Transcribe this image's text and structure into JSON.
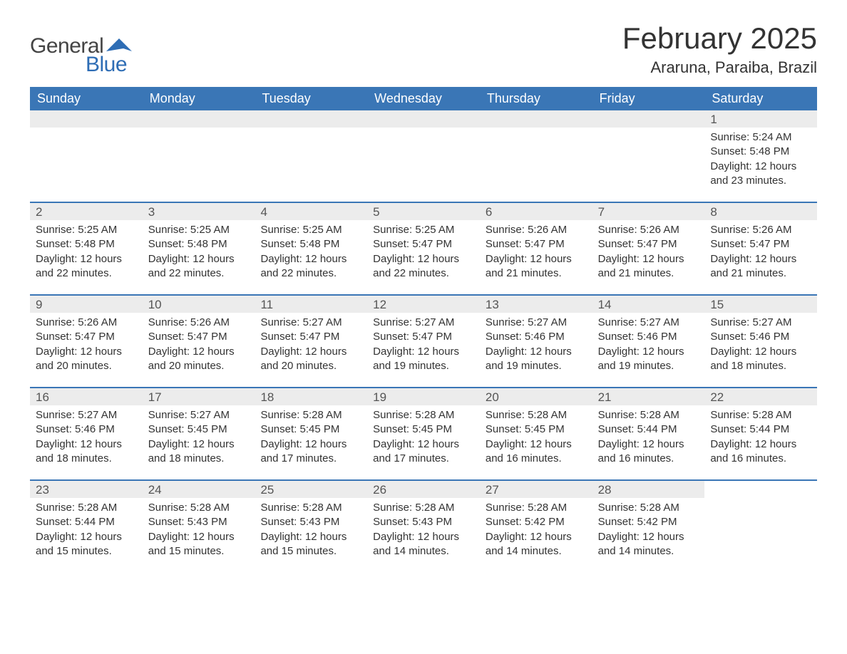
{
  "logo": {
    "text_general": "General",
    "text_blue": "Blue"
  },
  "title": "February 2025",
  "location": "Araruna, Paraiba, Brazil",
  "colors": {
    "header_bg": "#3a76b6",
    "header_text": "#ffffff",
    "daynum_bg": "#ececec",
    "border": "#3a76b6",
    "body_text": "#333333",
    "logo_blue": "#2e6db5",
    "background": "#ffffff"
  },
  "typography": {
    "title_fontsize": 42,
    "location_fontsize": 22,
    "dayheader_fontsize": 18,
    "daynum_fontsize": 17,
    "body_fontsize": 15
  },
  "day_headers": [
    "Sunday",
    "Monday",
    "Tuesday",
    "Wednesday",
    "Thursday",
    "Friday",
    "Saturday"
  ],
  "weeks": [
    [
      {
        "empty": true
      },
      {
        "empty": true
      },
      {
        "empty": true
      },
      {
        "empty": true
      },
      {
        "empty": true
      },
      {
        "empty": true
      },
      {
        "day": "1",
        "sunrise": "Sunrise: 5:24 AM",
        "sunset": "Sunset: 5:48 PM",
        "daylight1": "Daylight: 12 hours",
        "daylight2": "and 23 minutes."
      }
    ],
    [
      {
        "day": "2",
        "sunrise": "Sunrise: 5:25 AM",
        "sunset": "Sunset: 5:48 PM",
        "daylight1": "Daylight: 12 hours",
        "daylight2": "and 22 minutes."
      },
      {
        "day": "3",
        "sunrise": "Sunrise: 5:25 AM",
        "sunset": "Sunset: 5:48 PM",
        "daylight1": "Daylight: 12 hours",
        "daylight2": "and 22 minutes."
      },
      {
        "day": "4",
        "sunrise": "Sunrise: 5:25 AM",
        "sunset": "Sunset: 5:48 PM",
        "daylight1": "Daylight: 12 hours",
        "daylight2": "and 22 minutes."
      },
      {
        "day": "5",
        "sunrise": "Sunrise: 5:25 AM",
        "sunset": "Sunset: 5:47 PM",
        "daylight1": "Daylight: 12 hours",
        "daylight2": "and 22 minutes."
      },
      {
        "day": "6",
        "sunrise": "Sunrise: 5:26 AM",
        "sunset": "Sunset: 5:47 PM",
        "daylight1": "Daylight: 12 hours",
        "daylight2": "and 21 minutes."
      },
      {
        "day": "7",
        "sunrise": "Sunrise: 5:26 AM",
        "sunset": "Sunset: 5:47 PM",
        "daylight1": "Daylight: 12 hours",
        "daylight2": "and 21 minutes."
      },
      {
        "day": "8",
        "sunrise": "Sunrise: 5:26 AM",
        "sunset": "Sunset: 5:47 PM",
        "daylight1": "Daylight: 12 hours",
        "daylight2": "and 21 minutes."
      }
    ],
    [
      {
        "day": "9",
        "sunrise": "Sunrise: 5:26 AM",
        "sunset": "Sunset: 5:47 PM",
        "daylight1": "Daylight: 12 hours",
        "daylight2": "and 20 minutes."
      },
      {
        "day": "10",
        "sunrise": "Sunrise: 5:26 AM",
        "sunset": "Sunset: 5:47 PM",
        "daylight1": "Daylight: 12 hours",
        "daylight2": "and 20 minutes."
      },
      {
        "day": "11",
        "sunrise": "Sunrise: 5:27 AM",
        "sunset": "Sunset: 5:47 PM",
        "daylight1": "Daylight: 12 hours",
        "daylight2": "and 20 minutes."
      },
      {
        "day": "12",
        "sunrise": "Sunrise: 5:27 AM",
        "sunset": "Sunset: 5:47 PM",
        "daylight1": "Daylight: 12 hours",
        "daylight2": "and 19 minutes."
      },
      {
        "day": "13",
        "sunrise": "Sunrise: 5:27 AM",
        "sunset": "Sunset: 5:46 PM",
        "daylight1": "Daylight: 12 hours",
        "daylight2": "and 19 minutes."
      },
      {
        "day": "14",
        "sunrise": "Sunrise: 5:27 AM",
        "sunset": "Sunset: 5:46 PM",
        "daylight1": "Daylight: 12 hours",
        "daylight2": "and 19 minutes."
      },
      {
        "day": "15",
        "sunrise": "Sunrise: 5:27 AM",
        "sunset": "Sunset: 5:46 PM",
        "daylight1": "Daylight: 12 hours",
        "daylight2": "and 18 minutes."
      }
    ],
    [
      {
        "day": "16",
        "sunrise": "Sunrise: 5:27 AM",
        "sunset": "Sunset: 5:46 PM",
        "daylight1": "Daylight: 12 hours",
        "daylight2": "and 18 minutes."
      },
      {
        "day": "17",
        "sunrise": "Sunrise: 5:27 AM",
        "sunset": "Sunset: 5:45 PM",
        "daylight1": "Daylight: 12 hours",
        "daylight2": "and 18 minutes."
      },
      {
        "day": "18",
        "sunrise": "Sunrise: 5:28 AM",
        "sunset": "Sunset: 5:45 PM",
        "daylight1": "Daylight: 12 hours",
        "daylight2": "and 17 minutes."
      },
      {
        "day": "19",
        "sunrise": "Sunrise: 5:28 AM",
        "sunset": "Sunset: 5:45 PM",
        "daylight1": "Daylight: 12 hours",
        "daylight2": "and 17 minutes."
      },
      {
        "day": "20",
        "sunrise": "Sunrise: 5:28 AM",
        "sunset": "Sunset: 5:45 PM",
        "daylight1": "Daylight: 12 hours",
        "daylight2": "and 16 minutes."
      },
      {
        "day": "21",
        "sunrise": "Sunrise: 5:28 AM",
        "sunset": "Sunset: 5:44 PM",
        "daylight1": "Daylight: 12 hours",
        "daylight2": "and 16 minutes."
      },
      {
        "day": "22",
        "sunrise": "Sunrise: 5:28 AM",
        "sunset": "Sunset: 5:44 PM",
        "daylight1": "Daylight: 12 hours",
        "daylight2": "and 16 minutes."
      }
    ],
    [
      {
        "day": "23",
        "sunrise": "Sunrise: 5:28 AM",
        "sunset": "Sunset: 5:44 PM",
        "daylight1": "Daylight: 12 hours",
        "daylight2": "and 15 minutes."
      },
      {
        "day": "24",
        "sunrise": "Sunrise: 5:28 AM",
        "sunset": "Sunset: 5:43 PM",
        "daylight1": "Daylight: 12 hours",
        "daylight2": "and 15 minutes."
      },
      {
        "day": "25",
        "sunrise": "Sunrise: 5:28 AM",
        "sunset": "Sunset: 5:43 PM",
        "daylight1": "Daylight: 12 hours",
        "daylight2": "and 15 minutes."
      },
      {
        "day": "26",
        "sunrise": "Sunrise: 5:28 AM",
        "sunset": "Sunset: 5:43 PM",
        "daylight1": "Daylight: 12 hours",
        "daylight2": "and 14 minutes."
      },
      {
        "day": "27",
        "sunrise": "Sunrise: 5:28 AM",
        "sunset": "Sunset: 5:42 PM",
        "daylight1": "Daylight: 12 hours",
        "daylight2": "and 14 minutes."
      },
      {
        "day": "28",
        "sunrise": "Sunrise: 5:28 AM",
        "sunset": "Sunset: 5:42 PM",
        "daylight1": "Daylight: 12 hours",
        "daylight2": "and 14 minutes."
      },
      {
        "empty": true,
        "no_bar": true
      }
    ]
  ]
}
